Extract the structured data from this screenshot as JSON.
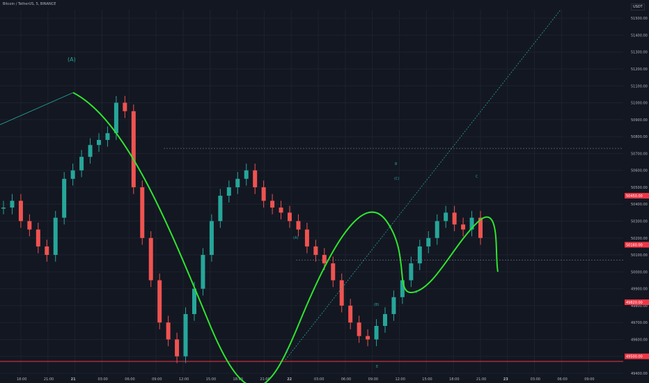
{
  "header": {
    "symbol_title": "Bitcoin / TetherUS, 5, BINANCE",
    "currency": "USDT"
  },
  "colors": {
    "background": "#131722",
    "up": "#26a69a",
    "down": "#ef5350",
    "wave": "#2ee62e",
    "level": "#f23645",
    "tick_text": "#b2b5be"
  },
  "chart_data": {
    "type": "candlestick",
    "title": "Bitcoin / TetherUS, 5, BINANCE",
    "currency": "USDT",
    "y_ticks": [
      51500,
      51400,
      51300,
      51200,
      51100,
      51000,
      50900,
      50800,
      50700,
      50600,
      50500,
      50400,
      50300,
      50200,
      50100,
      50000,
      49900,
      49800,
      49700,
      49600,
      49500,
      49400
    ],
    "y_tick_labels": [
      "51500.00",
      "51400.00",
      "51300.00",
      "51200.00",
      "51100.00",
      "51000.00",
      "50900.00",
      "50800.00",
      "50700.00",
      "50600.00",
      "50500.00",
      "50400.00",
      "50300.00",
      "50200.00",
      "50100.00",
      "50000.00",
      "49900.00",
      "49800.00",
      "49700.00",
      "49600.00",
      "49500.00",
      "49400.00"
    ],
    "x_ticks": [
      "18:00",
      "21:00",
      "21",
      "03:00",
      "06:00",
      "09:00",
      "12:00",
      "15:00",
      "18:00",
      "21:00",
      "22",
      "03:00",
      "06:00",
      "09:00",
      "12:00",
      "15:00",
      "18:00",
      "21:00",
      "23",
      "03:00",
      "06:00",
      "09:00"
    ],
    "ylim": [
      49400,
      51550
    ],
    "price_labels": [
      {
        "value": 50450,
        "text": "50450.00",
        "color": "#f23645"
      },
      {
        "value": 50160,
        "text": "50160.00",
        "color": "#f23645"
      },
      {
        "value": 49820,
        "text": "49820.00",
        "color": "#f23645"
      },
      {
        "value": 49500,
        "text": "49500.00",
        "color": "#f23645"
      }
    ],
    "series": [
      {
        "name": "ohlc",
        "close": [
          50380,
          50420,
          50300,
          50250,
          50150,
          50100,
          50320,
          50550,
          50600,
          50680,
          50750,
          50780,
          50820,
          51000,
          50950,
          50500,
          50200,
          49950,
          49700,
          49600,
          49500,
          49750,
          49900,
          50100,
          50300,
          50450,
          50500,
          50550,
          50600,
          50500,
          50420,
          50380,
          50350,
          50300,
          50250,
          50150,
          50100,
          50050,
          49950,
          49800,
          49700,
          49620,
          49600,
          49680,
          49750,
          49850,
          49950,
          50050,
          50150,
          50200,
          50300,
          50350,
          50280,
          50250,
          50320,
          50200
        ]
      }
    ],
    "wave_labels": [
      "(A)",
      "(A)",
      "A",
      "B",
      "(C)",
      "(B)",
      "C",
      "C",
      "E"
    ]
  }
}
